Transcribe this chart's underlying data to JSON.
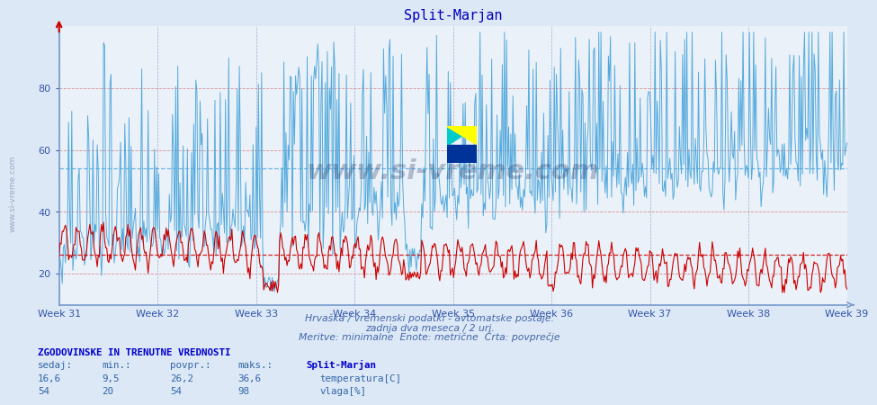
{
  "title": "Split-Marjan",
  "bg_color": "#dce8f5",
  "plot_bg_color": "#eaf1f8",
  "temp_color": "#cc0000",
  "humidity_color": "#55aadd",
  "temp_avg": 26.2,
  "humidity_avg": 54.0,
  "ylim": [
    10,
    100
  ],
  "yticks": [
    20,
    40,
    60,
    80
  ],
  "weeks": [
    "Week 31",
    "Week 32",
    "Week 33",
    "Week 34",
    "Week 35",
    "Week 36",
    "Week 37",
    "Week 38",
    "Week 39"
  ],
  "n_points": 744,
  "subtitle1": "Hrvaška / vremenski podatki - avtomatske postaje.",
  "subtitle2": "zadnja dva meseca / 2 uri.",
  "subtitle3": "Meritve: minimalne  Enote: metrične  Črta: povprečje",
  "info_title": "ZGODOVINSKE IN TRENUTNE VREDNOSTI",
  "col_headers": [
    "sedaj:",
    "min.:",
    "povpr.:",
    "maks.:"
  ],
  "station": "Split-Marjan",
  "temp_row": [
    "16,6",
    "9,5",
    "26,2",
    "36,6"
  ],
  "temp_label": "temperatura[C]",
  "hum_row": [
    "54",
    "20",
    "54",
    "98"
  ],
  "hum_label": "vlaga[%]",
  "watermark": "www.si-vreme.com",
  "left_label": "www.si-vreme.com",
  "spine_color": "#7799cc",
  "tick_color": "#3355aa",
  "grid_y_color": "#cc6666",
  "grid_x_color": "#8899cc",
  "avg_line_style": "--",
  "title_color": "#0000bb",
  "subtitle_color": "#4466aa",
  "info_color": "#0000cc",
  "text_color": "#3366aa"
}
